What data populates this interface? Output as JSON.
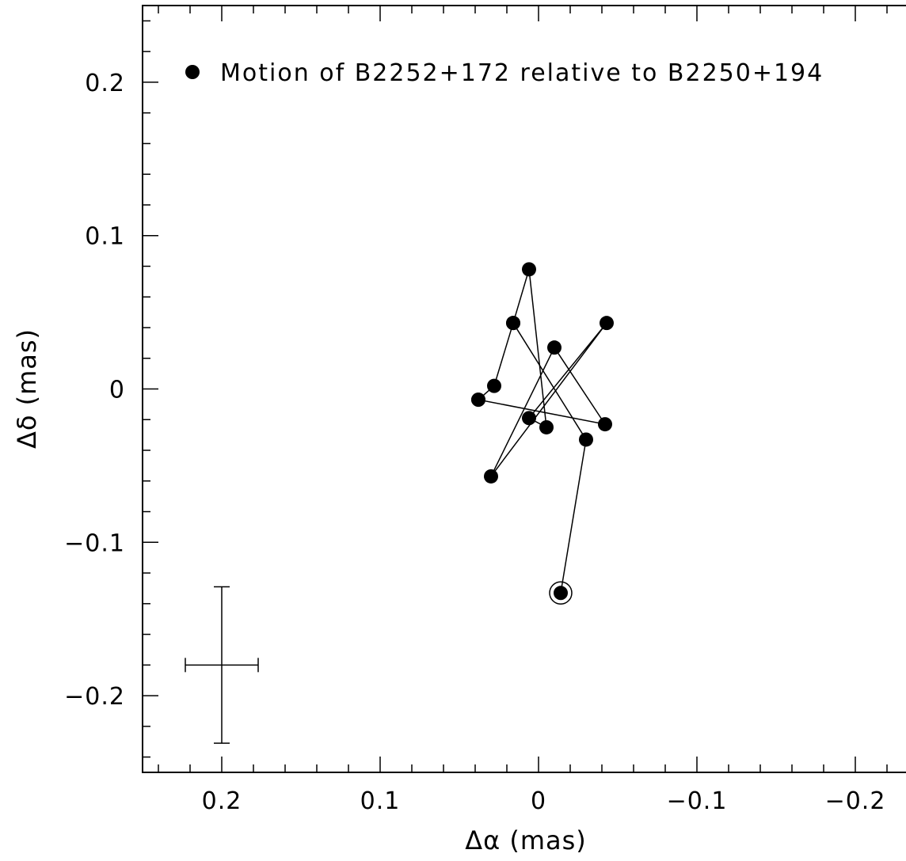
{
  "chart_data": {
    "type": "scatter",
    "title": "",
    "xlabel": "Δα (mas)",
    "ylabel": "Δδ (mas)",
    "xlim": [
      0.25,
      -0.25
    ],
    "ylim": [
      -0.25,
      0.25
    ],
    "x_ticks": [
      0.2,
      0.1,
      0,
      -0.1,
      -0.2
    ],
    "x_tick_labels": [
      "0.2",
      "0.1",
      "0",
      "−0.1",
      "−0.2"
    ],
    "y_ticks": [
      0.2,
      0.1,
      0,
      -0.1,
      -0.2
    ],
    "y_tick_labels": [
      "0.2",
      "0.1",
      "0",
      "−0.1",
      "−0.2"
    ],
    "grid": false,
    "legend_position": "top",
    "series": [
      {
        "name": "Motion of B2252+172 relative to B2250+194",
        "marker": "filled-circle",
        "connected": true,
        "color": "#000000",
        "points": [
          {
            "x": 0.038,
            "y": -0.007
          },
          {
            "x": 0.028,
            "y": 0.002
          },
          {
            "x": 0.016,
            "y": 0.043
          },
          {
            "x": 0.006,
            "y": 0.078
          },
          {
            "x": -0.005,
            "y": -0.025
          },
          {
            "x": 0.006,
            "y": -0.019
          },
          {
            "x": -0.043,
            "y": 0.043
          },
          {
            "x": 0.03,
            "y": -0.057
          },
          {
            "x": -0.01,
            "y": 0.027
          },
          {
            "x": -0.042,
            "y": -0.023
          },
          {
            "x": 0.038,
            "y": -0.007
          }
        ]
      },
      {
        "name": "",
        "marker": "filled-circle",
        "connected": true,
        "color": "#000000",
        "points": [
          {
            "x": 0.016,
            "y": 0.043
          },
          {
            "x": -0.03,
            "y": -0.033
          },
          {
            "x": -0.014,
            "y": -0.133
          }
        ]
      }
    ],
    "highlighted_point": {
      "x": -0.014,
      "y": -0.133,
      "marker": "circled"
    },
    "error_bar": {
      "x": 0.2,
      "y": -0.18,
      "x_err": 0.023,
      "y_err": 0.051
    }
  }
}
